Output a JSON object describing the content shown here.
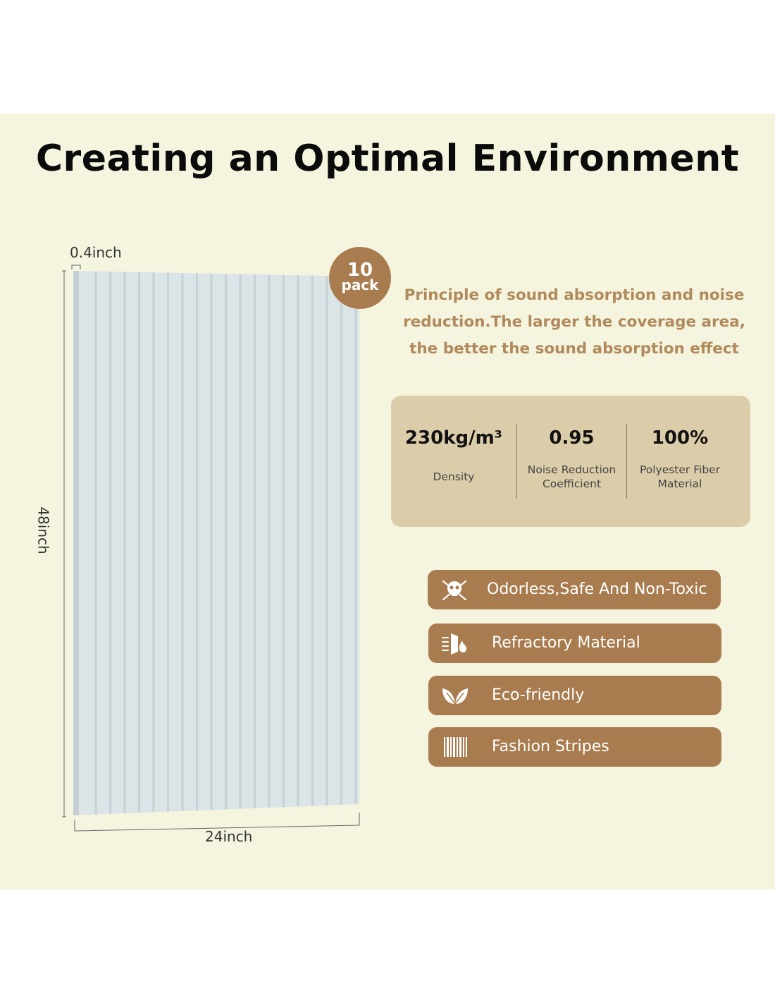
{
  "title": "Creating an Optimal Environment",
  "panel": {
    "thickness_label": "0.4inch",
    "height_label": "48inch",
    "width_label": "24inch",
    "panel_color": "#d9e3e6"
  },
  "pack_badge": {
    "number": "10",
    "word": "pack"
  },
  "principle_text": "Principle of sound absorption and noise reduction.The larger the coverage area, the better the sound absorption effect",
  "stats": [
    {
      "value": "230kg/m³",
      "label": "Density"
    },
    {
      "value": "0.95",
      "label": "Noise Reduction Coefficient"
    },
    {
      "value": "100%",
      "label": "Polyester Fiber Material"
    }
  ],
  "features": [
    {
      "label": "Odorless,Safe And Non-Toxic",
      "icon": "skull-crossbones-icon"
    },
    {
      "label": "Refractory Material",
      "icon": "fire-shield-icon"
    },
    {
      "label": "Eco-friendly",
      "icon": "leaf-icon"
    },
    {
      "label": "Fashion Stripes",
      "icon": "stripes-icon"
    }
  ],
  "colors": {
    "background_band": "#f5f4de",
    "accent_brown": "#a87c4f",
    "principle_text": "#b08a5c",
    "stats_box": "#dccdaa"
  }
}
